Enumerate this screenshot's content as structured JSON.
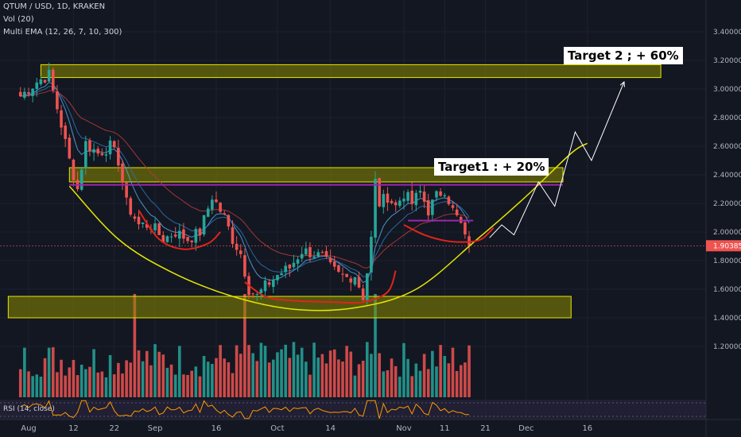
{
  "header": {
    "symbol_line": "QTUM / USD, 1D, KRAKEN",
    "vol_line": "Vol (20)",
    "ema_line": "Multi EMA (12, 26, 7, 10, 300)",
    "rsi_line": "RSI (14, close)"
  },
  "annotations": {
    "target1": "Target1 : + 20%",
    "target2": "Target 2 ; + 60%"
  },
  "colors": {
    "background": "#131722",
    "up": "#26a69a",
    "down": "#ef5350",
    "zone_fill": "#8a8a00",
    "zone_border": "#e6e600",
    "cup_curve": "#e6e600",
    "red_curve": "#e0241b",
    "purple_line": "#9c27b0",
    "projection": "#ffffff",
    "ema_fast": "#4fa3e0",
    "ema_slow": "#b23a3a",
    "price_badge": "#ef5350",
    "grid": "#1e2230",
    "axis_text": "#b2b5be",
    "rsi_line": "#ff9800",
    "rsi_band": "#2a2440"
  },
  "chart_data": {
    "type": "candlestick",
    "title": "QTUM / USD, 1D, KRAKEN",
    "last_price": 1.90385,
    "ylim": [
      1.1,
      3.5
    ],
    "y_ticks": [
      1.2,
      1.4,
      1.6,
      1.8,
      2.0,
      2.2,
      2.4,
      2.6,
      2.8,
      3.0,
      3.2,
      3.4
    ],
    "y_tick_labels": [
      "1.20000",
      "1.40000",
      "1.60000",
      "1.80000",
      "2.00000",
      "2.20000",
      "2.40000",
      "2.60000",
      "2.80000",
      "3.00000",
      "3.20000",
      "3.40000"
    ],
    "x_tick_labels": [
      {
        "label": "Aug",
        "day": 0
      },
      {
        "label": "12",
        "day": 11
      },
      {
        "label": "22",
        "day": 21
      },
      {
        "label": "Sep",
        "day": 31
      },
      {
        "label": "16",
        "day": 46
      },
      {
        "label": "Oct",
        "day": 61
      },
      {
        "label": "14",
        "day": 74
      },
      {
        "label": "Nov",
        "day": 92
      },
      {
        "label": "11",
        "day": 102
      },
      {
        "label": "21",
        "day": 112
      },
      {
        "label": "Dec",
        "day": 122
      },
      {
        "label": "16",
        "day": 137
      }
    ],
    "anchors": [
      {
        "day": -2,
        "close": 2.95
      },
      {
        "day": 2,
        "close": 3.05
      },
      {
        "day": 5,
        "close": 3.1
      },
      {
        "day": 8,
        "close": 2.75
      },
      {
        "day": 10,
        "close": 2.5
      },
      {
        "day": 12,
        "close": 2.3
      },
      {
        "day": 14,
        "close": 2.62
      },
      {
        "day": 17,
        "close": 2.55
      },
      {
        "day": 20,
        "close": 2.6
      },
      {
        "day": 22,
        "close": 2.5
      },
      {
        "day": 24,
        "close": 2.2
      },
      {
        "day": 27,
        "close": 2.05
      },
      {
        "day": 30,
        "close": 2.05
      },
      {
        "day": 33,
        "close": 1.95
      },
      {
        "day": 36,
        "close": 2.0
      },
      {
        "day": 39,
        "close": 1.95
      },
      {
        "day": 42,
        "close": 2.0
      },
      {
        "day": 45,
        "close": 2.25
      },
      {
        "day": 48,
        "close": 2.1
      },
      {
        "day": 50,
        "close": 1.95
      },
      {
        "day": 52,
        "close": 1.85
      },
      {
        "day": 54,
        "close": 1.6
      },
      {
        "day": 56,
        "close": 1.55
      },
      {
        "day": 58,
        "close": 1.62
      },
      {
        "day": 61,
        "close": 1.7
      },
      {
        "day": 64,
        "close": 1.75
      },
      {
        "day": 67,
        "close": 1.87
      },
      {
        "day": 70,
        "close": 1.85
      },
      {
        "day": 72,
        "close": 1.82
      },
      {
        "day": 74,
        "close": 1.75
      },
      {
        "day": 76,
        "close": 1.7
      },
      {
        "day": 78,
        "close": 1.68
      },
      {
        "day": 80,
        "close": 1.7
      },
      {
        "day": 82,
        "close": 1.55
      },
      {
        "day": 83,
        "close": 1.72
      },
      {
        "day": 84,
        "close": 1.95
      },
      {
        "day": 85,
        "close": 2.35
      },
      {
        "day": 86,
        "close": 2.2
      },
      {
        "day": 88,
        "close": 2.25
      },
      {
        "day": 90,
        "close": 2.18
      },
      {
        "day": 92,
        "close": 2.27
      },
      {
        "day": 94,
        "close": 2.2
      },
      {
        "day": 96,
        "close": 2.28
      },
      {
        "day": 98,
        "close": 2.15
      },
      {
        "day": 100,
        "close": 2.25
      },
      {
        "day": 102,
        "close": 2.3
      },
      {
        "day": 104,
        "close": 2.15
      },
      {
        "day": 106,
        "close": 2.05
      },
      {
        "day": 107,
        "close": 1.95
      },
      {
        "day": 108,
        "close": 1.9
      }
    ],
    "zones": [
      {
        "from_day": 3,
        "to_day": 155,
        "low": 3.08,
        "high": 3.17
      },
      {
        "from_day": 10,
        "to_day": 131,
        "low": 2.35,
        "high": 2.45
      },
      {
        "from_day": -5,
        "to_day": 133,
        "low": 1.4,
        "high": 1.55
      }
    ],
    "horizontal_lines": [
      {
        "from_day": 10,
        "to_day": 131,
        "value": 2.33,
        "color": "purple"
      },
      {
        "from_day": 93,
        "to_day": 109,
        "value": 2.08,
        "color": "purple"
      }
    ],
    "cup_curve": [
      {
        "day": 10,
        "value": 2.32
      },
      {
        "day": 22,
        "value": 1.95
      },
      {
        "day": 35,
        "value": 1.72
      },
      {
        "day": 50,
        "value": 1.55
      },
      {
        "day": 65,
        "value": 1.46
      },
      {
        "day": 80,
        "value": 1.47
      },
      {
        "day": 95,
        "value": 1.6
      },
      {
        "day": 110,
        "value": 1.95
      },
      {
        "day": 122,
        "value": 2.25
      },
      {
        "day": 133,
        "value": 2.55
      },
      {
        "day": 137,
        "value": 2.62
      }
    ],
    "red_curves": [
      [
        {
          "day": 27,
          "value": 2.15
        },
        {
          "day": 32,
          "value": 1.95
        },
        {
          "day": 38,
          "value": 1.88
        },
        {
          "day": 44,
          "value": 1.92
        },
        {
          "day": 47,
          "value": 2.0
        }
      ],
      [
        {
          "day": 53,
          "value": 1.65
        },
        {
          "day": 58,
          "value": 1.55
        },
        {
          "day": 65,
          "value": 1.52
        },
        {
          "day": 75,
          "value": 1.51
        },
        {
          "day": 82,
          "value": 1.51
        },
        {
          "day": 88,
          "value": 1.58
        },
        {
          "day": 90,
          "value": 1.73
        }
      ],
      [
        {
          "day": 92,
          "value": 2.05
        },
        {
          "day": 97,
          "value": 1.98
        },
        {
          "day": 102,
          "value": 1.94
        },
        {
          "day": 107,
          "value": 1.93
        },
        {
          "day": 111,
          "value": 1.95
        },
        {
          "day": 114,
          "value": 2.03
        }
      ]
    ],
    "projection_path": [
      {
        "day": 113,
        "value": 1.96
      },
      {
        "day": 116,
        "value": 2.05
      },
      {
        "day": 119,
        "value": 1.98
      },
      {
        "day": 125,
        "value": 2.35
      },
      {
        "day": 129,
        "value": 2.18
      },
      {
        "day": 134,
        "value": 2.7
      },
      {
        "day": 138,
        "value": 2.5
      },
      {
        "day": 146,
        "value": 3.05
      }
    ],
    "series": [
      {
        "name": "Vol (20)"
      },
      {
        "name": "RSI (14, close)"
      }
    ]
  }
}
